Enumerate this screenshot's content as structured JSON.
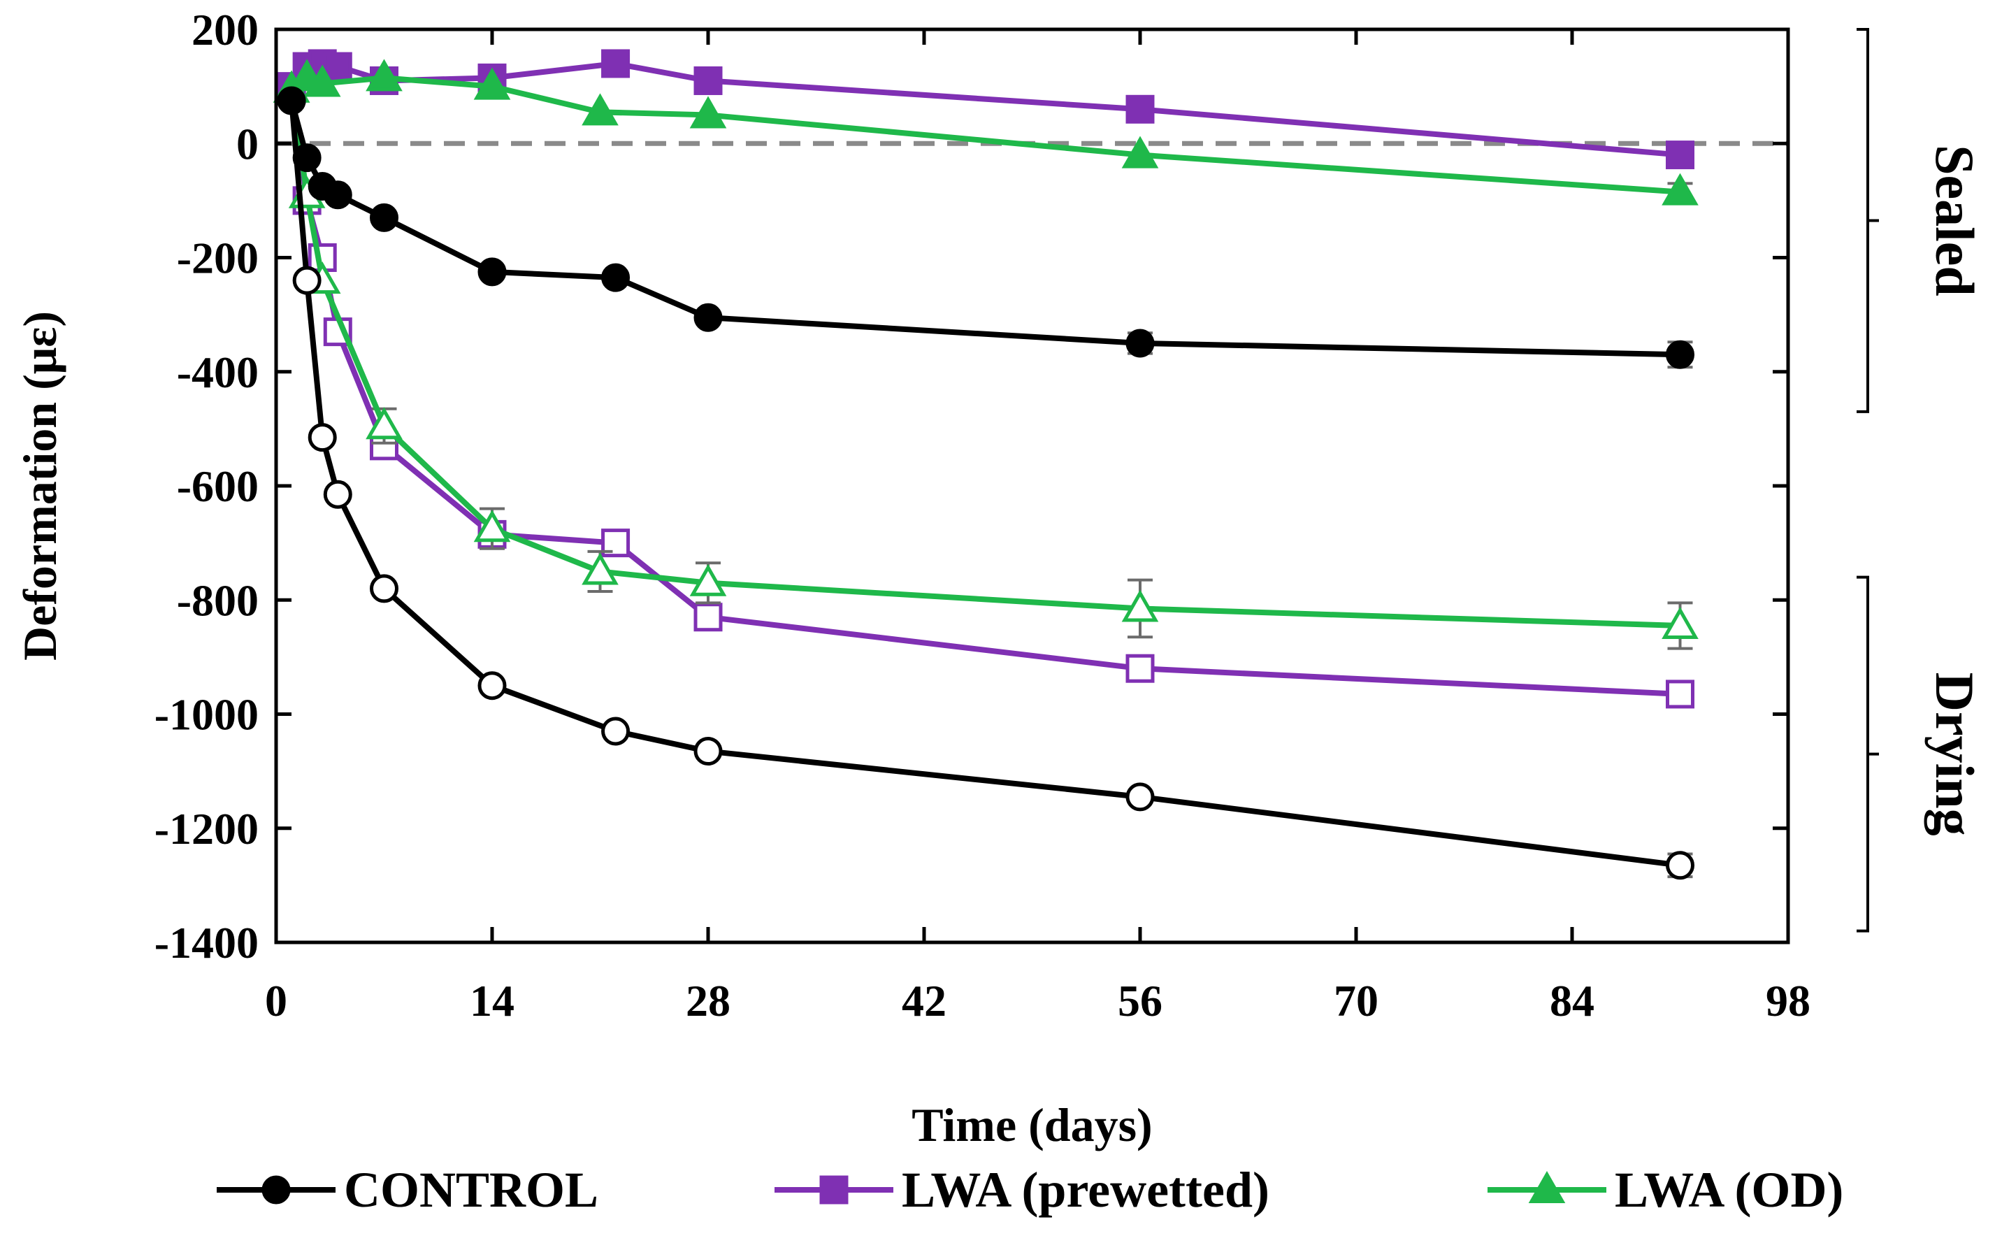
{
  "chart_data": {
    "type": "line",
    "title": "",
    "xlabel": "Time (days)",
    "ylabel": "Deformation (με)",
    "xlim": [
      0,
      98
    ],
    "ylim": [
      -1400,
      200
    ],
    "xticks": [
      "0",
      "14",
      "28",
      "42",
      "56",
      "70",
      "84",
      "98"
    ],
    "yticks": [
      "200",
      "0",
      "-200",
      "-400",
      "-600",
      "-800",
      "-1000",
      "-1200",
      "-1400"
    ],
    "zero_reference_line": true,
    "groups": [
      {
        "label": "Sealed",
        "range": [
          200,
          -470
        ]
      },
      {
        "label": "Drying",
        "range": [
          -760,
          -1380
        ]
      }
    ],
    "series": [
      {
        "name": "CONTROL",
        "condition": "Sealed",
        "color": "#000000",
        "marker": "circle",
        "filled": true,
        "x": [
          1,
          2,
          3,
          4,
          7,
          14,
          22,
          28,
          56,
          91
        ],
        "y": [
          75,
          -25,
          -75,
          -90,
          -130,
          -225,
          -235,
          -305,
          -350,
          -370
        ],
        "err": [
          0,
          0,
          0,
          0,
          0,
          0,
          0,
          0,
          18,
          22
        ]
      },
      {
        "name": "LWA (prewetted)",
        "condition": "Sealed",
        "color": "#7f30b3",
        "marker": "square",
        "filled": true,
        "x": [
          1,
          2,
          3,
          4,
          7,
          14,
          22,
          28,
          56,
          91
        ],
        "y": [
          100,
          135,
          140,
          135,
          110,
          115,
          140,
          110,
          60,
          -20
        ],
        "err": [
          0,
          0,
          0,
          0,
          0,
          0,
          0,
          0,
          0,
          0
        ]
      },
      {
        "name": "LWA (OD)",
        "condition": "Sealed",
        "color": "#1fb84a",
        "marker": "triangle",
        "filled": true,
        "x": [
          1,
          2,
          3,
          7,
          14,
          21,
          28,
          56,
          91
        ],
        "y": [
          95,
          115,
          105,
          115,
          100,
          55,
          50,
          -20,
          -85
        ],
        "err": [
          0,
          0,
          0,
          0,
          0,
          0,
          0,
          0,
          15
        ]
      },
      {
        "name": "CONTROL",
        "condition": "Drying",
        "color": "#000000",
        "marker": "circle",
        "filled": false,
        "x": [
          1,
          2,
          3,
          4,
          7,
          14,
          22,
          28,
          56,
          91
        ],
        "y": [
          75,
          -240,
          -515,
          -615,
          -780,
          -950,
          -1030,
          -1065,
          -1145,
          -1265
        ],
        "err": [
          0,
          0,
          0,
          0,
          0,
          0,
          0,
          0,
          0,
          20
        ]
      },
      {
        "name": "LWA (prewetted)",
        "condition": "Drying",
        "color": "#7f30b3",
        "marker": "square",
        "filled": false,
        "x": [
          1,
          2,
          3,
          4,
          7,
          14,
          22,
          28,
          56,
          91
        ],
        "y": [
          95,
          -100,
          -200,
          -330,
          -530,
          -685,
          -700,
          -830,
          -920,
          -965
        ],
        "err": [
          0,
          0,
          0,
          0,
          0,
          20,
          0,
          0,
          0,
          0
        ]
      },
      {
        "name": "LWA (OD)",
        "condition": "Drying",
        "color": "#1fb84a",
        "marker": "triangle",
        "filled": false,
        "x": [
          1,
          2,
          3,
          7,
          14,
          21,
          28,
          56,
          91
        ],
        "y": [
          95,
          -90,
          -240,
          -495,
          -675,
          -750,
          -770,
          -815,
          -845
        ],
        "err": [
          0,
          0,
          0,
          30,
          35,
          35,
          35,
          50,
          40
        ]
      }
    ],
    "legend": [
      {
        "name": "CONTROL",
        "color": "#000000",
        "marker": "circle"
      },
      {
        "name": "LWA (prewetted)",
        "color": "#7f30b3",
        "marker": "square"
      },
      {
        "name": "LWA (OD)",
        "color": "#1fb84a",
        "marker": "triangle"
      }
    ],
    "legend_position": "bottom"
  }
}
